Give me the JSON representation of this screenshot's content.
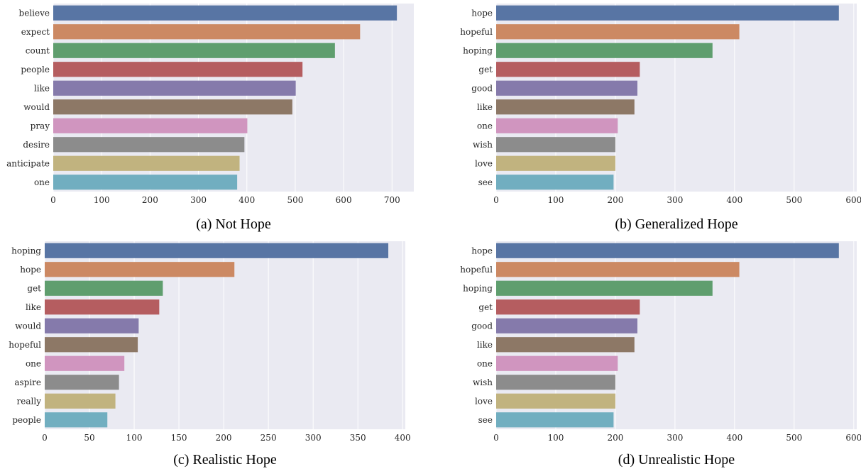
{
  "colors": [
    "#5875a4",
    "#cc8963",
    "#5f9e6e",
    "#b55d60",
    "#857aab",
    "#8d7866",
    "#d095bf",
    "#8c8c8c",
    "#c1b37f",
    "#71aec0"
  ],
  "plot_background": "#eaeaf2",
  "chart_data": [
    {
      "type": "bar",
      "orientation": "horizontal",
      "caption": "(a) Not Hope",
      "categories": [
        "believe",
        "expect",
        "count",
        "people",
        "like",
        "would",
        "pray",
        "desire",
        "anticipate",
        "one"
      ],
      "values": [
        710,
        634,
        582,
        515,
        501,
        494,
        401,
        395,
        385,
        380
      ],
      "xlim": [
        0,
        745
      ],
      "xticks": [
        0,
        100,
        200,
        300,
        400,
        500,
        600,
        700
      ],
      "xlabel": "",
      "ylabel": "",
      "grid": true,
      "legend": "none"
    },
    {
      "type": "bar",
      "orientation": "horizontal",
      "caption": "(b) Generalized Hope",
      "categories": [
        "hope",
        "hopeful",
        "hoping",
        "get",
        "good",
        "like",
        "one",
        "wish",
        "love",
        "see"
      ],
      "values": [
        575,
        408,
        363,
        241,
        237,
        232,
        204,
        200,
        200,
        197
      ],
      "xlim": [
        0,
        605
      ],
      "xticks": [
        0,
        100,
        200,
        300,
        400,
        500,
        600
      ],
      "xlabel": "",
      "ylabel": "",
      "grid": true,
      "legend": "none"
    },
    {
      "type": "bar",
      "orientation": "horizontal",
      "caption": "(c) Realistic Hope",
      "categories": [
        "hoping",
        "hope",
        "get",
        "like",
        "would",
        "hopeful",
        "one",
        "aspire",
        "really",
        "people"
      ],
      "values": [
        384,
        212,
        132,
        128,
        105,
        104,
        89,
        83,
        79,
        70
      ],
      "xlim": [
        0,
        403
      ],
      "xticks": [
        0,
        50,
        100,
        150,
        200,
        250,
        300,
        350,
        400
      ],
      "xlabel": "",
      "ylabel": "",
      "grid": true,
      "legend": "none"
    },
    {
      "type": "bar",
      "orientation": "horizontal",
      "caption": "(d) Unrealistic Hope",
      "categories": [
        "hope",
        "hopeful",
        "hoping",
        "get",
        "good",
        "like",
        "one",
        "wish",
        "love",
        "see"
      ],
      "values": [
        575,
        408,
        363,
        241,
        237,
        232,
        204,
        200,
        200,
        197
      ],
      "xlim": [
        0,
        605
      ],
      "xticks": [
        0,
        100,
        200,
        300,
        400,
        500,
        600
      ],
      "xlabel": "",
      "ylabel": "",
      "grid": true,
      "legend": "none"
    }
  ]
}
